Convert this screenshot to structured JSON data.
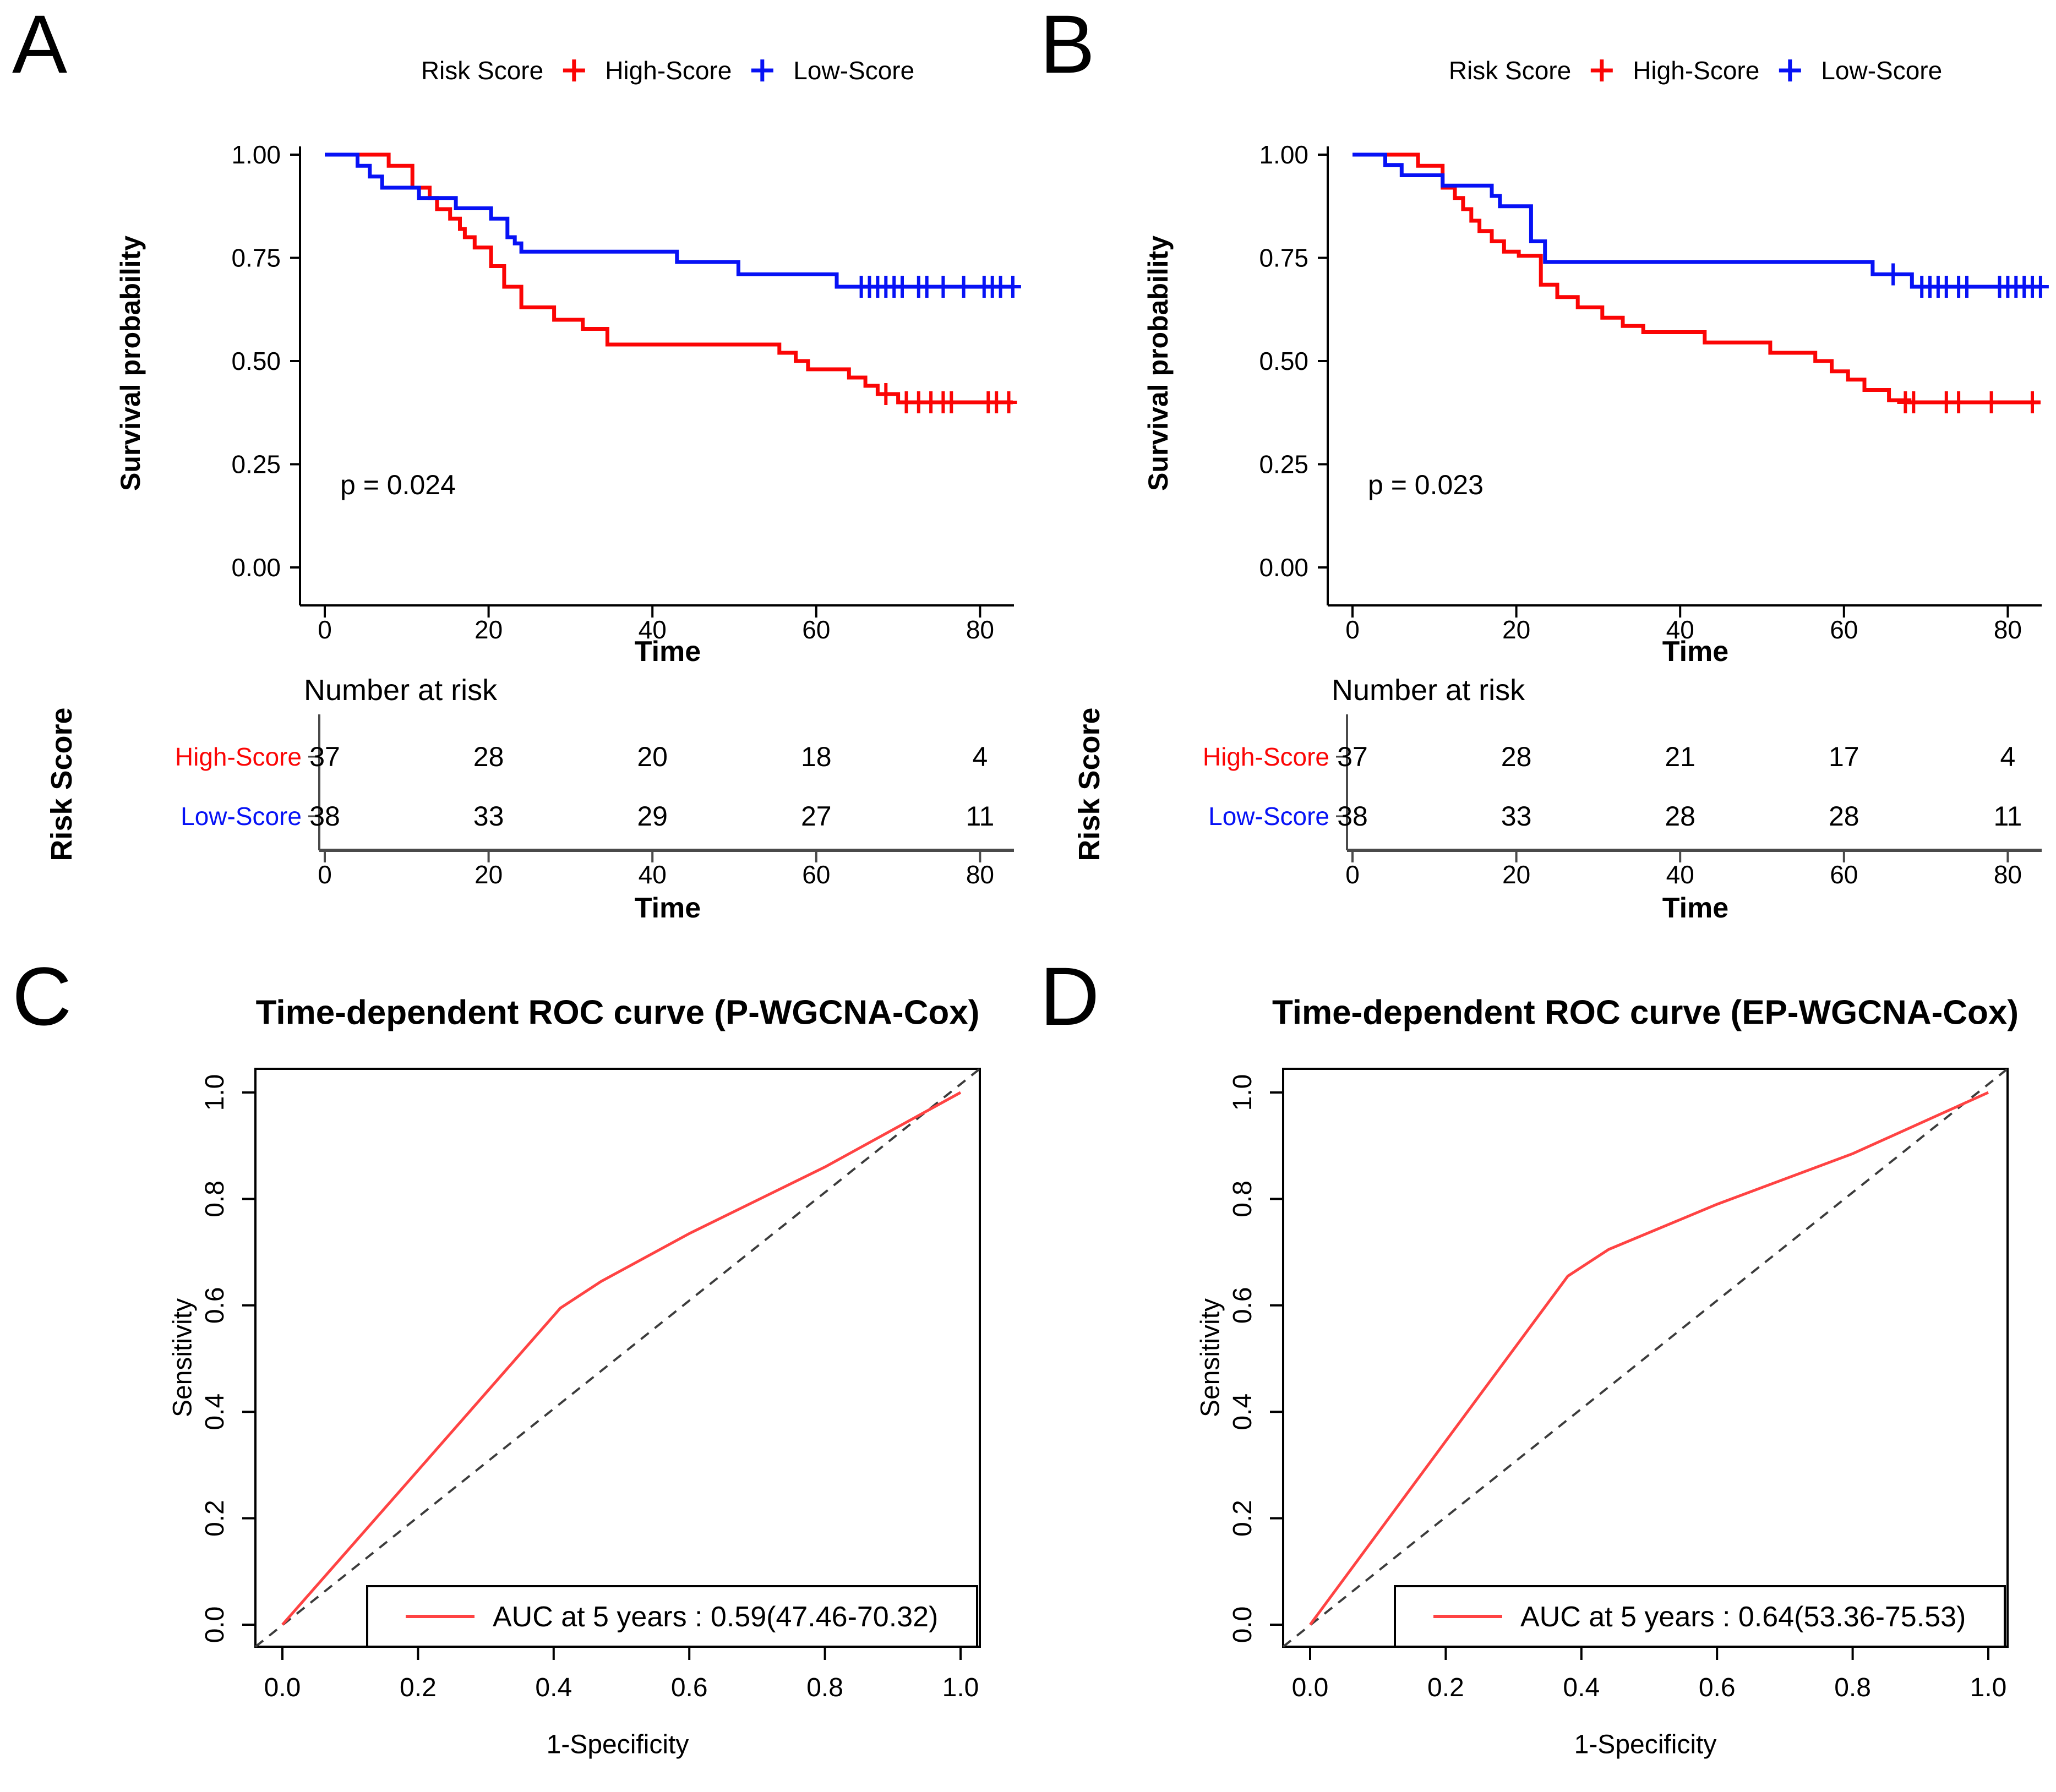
{
  "panels": {
    "a": {
      "letter": "A"
    },
    "b": {
      "letter": "B"
    },
    "c": {
      "letter": "C"
    },
    "d": {
      "letter": "D"
    }
  },
  "colors": {
    "high_score": "#fb0505",
    "low_score": "#0712f5",
    "roc_curve": "#ff4343",
    "diagonal": "#3c3c3c",
    "risk_axis": "#4a4a4a"
  },
  "km": {
    "legend_title": "Risk Score",
    "series": [
      {
        "name": "High-Score",
        "color": "#fb0505"
      },
      {
        "name": "Low-Score",
        "color": "#0712f5"
      }
    ],
    "ylabel": "Survival probability",
    "xlabel": "Time",
    "risk_title": "Number at risk",
    "risk_ylabel": "Risk Score",
    "ytick_values": [
      1,
      0.75,
      0.5,
      0.25,
      0
    ],
    "ytick_labels": [
      "1.00",
      "0.75",
      "0.50",
      "0.25",
      "0.00"
    ],
    "xticks": [
      0,
      20,
      40,
      60,
      80
    ]
  },
  "chart_data": [
    {
      "id": "km_a",
      "type": "line",
      "subtype": "km_step",
      "pvalue": "p = 0.024",
      "xlabel": "Time",
      "ylabel": "Survival probability",
      "xlim": [
        0,
        84
      ],
      "ylim": [
        0,
        1.0
      ],
      "xticks": [
        0,
        20,
        40,
        60,
        80
      ],
      "yticks": [
        1.0,
        0.75,
        0.5,
        0.25,
        0.0
      ],
      "legend_position": "top",
      "grid": false,
      "series": [
        {
          "name": "High-Score",
          "color": "#fb0505",
          "steps": [
            [
              0,
              1
            ],
            [
              7.8,
              1
            ],
            [
              7.8,
              0.973
            ],
            [
              10.7,
              0.973
            ],
            [
              10.7,
              0.92
            ],
            [
              12.8,
              0.92
            ],
            [
              12.8,
              0.895
            ],
            [
              13.7,
              0.895
            ],
            [
              13.7,
              0.868
            ],
            [
              15.3,
              0.868
            ],
            [
              15.3,
              0.845
            ],
            [
              16.5,
              0.845
            ],
            [
              16.5,
              0.82
            ],
            [
              17.1,
              0.82
            ],
            [
              17.1,
              0.8
            ],
            [
              18.3,
              0.8
            ],
            [
              18.3,
              0.775
            ],
            [
              20.3,
              0.775
            ],
            [
              20.3,
              0.73
            ],
            [
              21.9,
              0.73
            ],
            [
              21.9,
              0.68
            ],
            [
              24,
              0.68
            ],
            [
              24,
              0.63
            ],
            [
              28,
              0.63
            ],
            [
              28,
              0.6
            ],
            [
              31.5,
              0.6
            ],
            [
              31.5,
              0.578
            ],
            [
              34.5,
              0.578
            ],
            [
              34.5,
              0.54
            ],
            [
              55.5,
              0.54
            ],
            [
              55.5,
              0.52
            ],
            [
              57.5,
              0.52
            ],
            [
              57.5,
              0.5
            ],
            [
              59,
              0.5
            ],
            [
              59,
              0.48
            ],
            [
              64,
              0.48
            ],
            [
              64,
              0.46
            ],
            [
              66,
              0.46
            ],
            [
              66,
              0.44
            ],
            [
              67.5,
              0.44
            ],
            [
              67.5,
              0.42
            ],
            [
              70,
              0.42
            ],
            [
              70,
              0.4
            ],
            [
              84,
              0.4
            ]
          ],
          "censors": [
            [
              68.5,
              0.42
            ],
            [
              71,
              0.4
            ],
            [
              72.5,
              0.4
            ],
            [
              74,
              0.4
            ],
            [
              75.5,
              0.4
            ],
            [
              76.5,
              0.4
            ],
            [
              81,
              0.4
            ],
            [
              82,
              0.4
            ],
            [
              83.5,
              0.4
            ]
          ]
        },
        {
          "name": "Low-Score",
          "color": "#0712f5",
          "steps": [
            [
              0,
              1
            ],
            [
              4,
              1
            ],
            [
              4,
              0.973
            ],
            [
              5.5,
              0.973
            ],
            [
              5.5,
              0.947
            ],
            [
              7,
              0.947
            ],
            [
              7,
              0.92
            ],
            [
              11.5,
              0.92
            ],
            [
              11.5,
              0.895
            ],
            [
              16,
              0.895
            ],
            [
              16,
              0.87
            ],
            [
              20.3,
              0.87
            ],
            [
              20.3,
              0.845
            ],
            [
              22.3,
              0.845
            ],
            [
              22.3,
              0.8
            ],
            [
              23.2,
              0.8
            ],
            [
              23.2,
              0.785
            ],
            [
              24,
              0.785
            ],
            [
              24,
              0.765
            ],
            [
              43,
              0.765
            ],
            [
              43,
              0.74
            ],
            [
              50.5,
              0.74
            ],
            [
              50.5,
              0.71
            ],
            [
              62.5,
              0.71
            ],
            [
              62.5,
              0.68
            ],
            [
              84,
              0.68
            ]
          ],
          "censors": [
            [
              65.5,
              0.68
            ],
            [
              66.5,
              0.68
            ],
            [
              67.5,
              0.68
            ],
            [
              68.5,
              0.68
            ],
            [
              69.5,
              0.68
            ],
            [
              70.5,
              0.68
            ],
            [
              72.5,
              0.68
            ],
            [
              73.5,
              0.68
            ],
            [
              75.5,
              0.68
            ],
            [
              78,
              0.68
            ],
            [
              80.5,
              0.68
            ],
            [
              81.5,
              0.68
            ],
            [
              82.5,
              0.68
            ],
            [
              84,
              0.68
            ]
          ]
        }
      ],
      "risk_table": {
        "title": "Number at risk",
        "ylabel": "Risk Score",
        "times": [
          0,
          20,
          40,
          60,
          80
        ],
        "rows": [
          {
            "name": "High-Score",
            "color": "#fb0505",
            "counts": [
              37,
              28,
              20,
              18,
              4
            ]
          },
          {
            "name": "Low-Score",
            "color": "#0712f5",
            "counts": [
              38,
              33,
              29,
              27,
              11
            ]
          }
        ]
      }
    },
    {
      "id": "km_b",
      "type": "line",
      "subtype": "km_step",
      "pvalue": "p = 0.023",
      "xlabel": "Time",
      "ylabel": "Survival probability",
      "xlim": [
        0,
        84
      ],
      "ylim": [
        0,
        1.0
      ],
      "xticks": [
        0,
        20,
        40,
        60,
        80
      ],
      "yticks": [
        1.0,
        0.75,
        0.5,
        0.25,
        0.0
      ],
      "legend_position": "top",
      "grid": false,
      "series": [
        {
          "name": "High-Score",
          "color": "#fb0505",
          "steps": [
            [
              0,
              1
            ],
            [
              8,
              1
            ],
            [
              8,
              0.973
            ],
            [
              11,
              0.973
            ],
            [
              11,
              0.92
            ],
            [
              12.5,
              0.92
            ],
            [
              12.5,
              0.895
            ],
            [
              13.5,
              0.895
            ],
            [
              13.5,
              0.868
            ],
            [
              14.5,
              0.868
            ],
            [
              14.5,
              0.84
            ],
            [
              15.5,
              0.84
            ],
            [
              15.5,
              0.815
            ],
            [
              17,
              0.815
            ],
            [
              17,
              0.79
            ],
            [
              18.5,
              0.79
            ],
            [
              18.5,
              0.765
            ],
            [
              20.3,
              0.765
            ],
            [
              20.3,
              0.755
            ],
            [
              23,
              0.755
            ],
            [
              23,
              0.685
            ],
            [
              25,
              0.685
            ],
            [
              25,
              0.655
            ],
            [
              27.5,
              0.655
            ],
            [
              27.5,
              0.63
            ],
            [
              30.5,
              0.63
            ],
            [
              30.5,
              0.605
            ],
            [
              33,
              0.605
            ],
            [
              33,
              0.585
            ],
            [
              35.5,
              0.585
            ],
            [
              35.5,
              0.57
            ],
            [
              43,
              0.57
            ],
            [
              43,
              0.545
            ],
            [
              51,
              0.545
            ],
            [
              51,
              0.52
            ],
            [
              56.5,
              0.52
            ],
            [
              56.5,
              0.5
            ],
            [
              58.5,
              0.5
            ],
            [
              58.5,
              0.475
            ],
            [
              60.5,
              0.475
            ],
            [
              60.5,
              0.455
            ],
            [
              62.5,
              0.455
            ],
            [
              62.5,
              0.43
            ],
            [
              65.5,
              0.43
            ],
            [
              65.5,
              0.405
            ],
            [
              68,
              0.405
            ],
            [
              68,
              0.4
            ],
            [
              84,
              0.4
            ]
          ],
          "censors": [
            [
              67.5,
              0.4
            ],
            [
              68.5,
              0.4
            ],
            [
              72.5,
              0.4
            ],
            [
              74,
              0.4
            ],
            [
              78,
              0.4
            ],
            [
              83,
              0.4
            ]
          ]
        },
        {
          "name": "Low-Score",
          "color": "#0712f5",
          "steps": [
            [
              0,
              1
            ],
            [
              4,
              1
            ],
            [
              4,
              0.975
            ],
            [
              6,
              0.975
            ],
            [
              6,
              0.95
            ],
            [
              11,
              0.95
            ],
            [
              11,
              0.925
            ],
            [
              17,
              0.925
            ],
            [
              17,
              0.9
            ],
            [
              18,
              0.9
            ],
            [
              18,
              0.875
            ],
            [
              21.8,
              0.875
            ],
            [
              21.8,
              0.79
            ],
            [
              23.5,
              0.79
            ],
            [
              23.5,
              0.74
            ],
            [
              63.5,
              0.74
            ],
            [
              63.5,
              0.71
            ],
            [
              68.3,
              0.71
            ],
            [
              68.3,
              0.68
            ],
            [
              84,
              0.68
            ]
          ],
          "censors": [
            [
              66,
              0.71
            ],
            [
              69.5,
              0.68
            ],
            [
              70.5,
              0.68
            ],
            [
              71.5,
              0.68
            ],
            [
              72.5,
              0.68
            ],
            [
              74,
              0.68
            ],
            [
              75,
              0.68
            ],
            [
              79,
              0.68
            ],
            [
              80,
              0.68
            ],
            [
              81,
              0.68
            ],
            [
              82,
              0.68
            ],
            [
              83,
              0.68
            ],
            [
              84,
              0.68
            ]
          ]
        }
      ],
      "risk_table": {
        "title": "Number at risk",
        "ylabel": "Risk Score",
        "times": [
          0,
          20,
          40,
          60,
          80
        ],
        "rows": [
          {
            "name": "High-Score",
            "color": "#fb0505",
            "counts": [
              37,
              28,
              21,
              17,
              4
            ]
          },
          {
            "name": "Low-Score",
            "color": "#0712f5",
            "counts": [
              38,
              33,
              28,
              28,
              11
            ]
          }
        ]
      }
    },
    {
      "id": "roc_p",
      "type": "line",
      "subtype": "roc",
      "title": "Time-dependent ROC curve (P-WGCNA-Cox)",
      "xlabel": "1-Specificity",
      "ylabel": "Sensitivity",
      "xlim": [
        0,
        1
      ],
      "ylim": [
        0,
        1
      ],
      "tick_values": [
        0,
        0.2,
        0.4,
        0.6,
        0.8,
        1
      ],
      "tick_labels": [
        "0.0",
        "0.2",
        "0.4",
        "0.6",
        "0.8",
        "1.0"
      ],
      "diagonal": "dashed",
      "color": "#ff4343",
      "legend_label": "AUC at 5 years : 0.59(47.46-70.32)",
      "auc_at_5_years": 0.59,
      "auc_ci": "47.46-70.32",
      "curve": [
        [
          0,
          0
        ],
        [
          0.2,
          0.29
        ],
        [
          0.41,
          0.595
        ],
        [
          0.47,
          0.645
        ],
        [
          0.6,
          0.735
        ],
        [
          0.8,
          0.86
        ],
        [
          1,
          1
        ]
      ]
    },
    {
      "id": "roc_ep",
      "type": "line",
      "subtype": "roc",
      "title": "Time-dependent ROC curve (EP-WGCNA-Cox)",
      "xlabel": "1-Specificity",
      "ylabel": "Sensitivity",
      "xlim": [
        0,
        1
      ],
      "ylim": [
        0,
        1
      ],
      "tick_values": [
        0,
        0.2,
        0.4,
        0.6,
        0.8,
        1
      ],
      "tick_labels": [
        "0.0",
        "0.2",
        "0.4",
        "0.6",
        "0.8",
        "1.0"
      ],
      "diagonal": "dashed",
      "color": "#ff4343",
      "legend_label": "AUC at 5 years : 0.64(53.36-75.53)",
      "auc_at_5_years": 0.64,
      "auc_ci": "53.36-75.53",
      "curve": [
        [
          0,
          0
        ],
        [
          0.2,
          0.345
        ],
        [
          0.38,
          0.655
        ],
        [
          0.44,
          0.705
        ],
        [
          0.6,
          0.79
        ],
        [
          0.8,
          0.885
        ],
        [
          1,
          1
        ]
      ]
    }
  ]
}
